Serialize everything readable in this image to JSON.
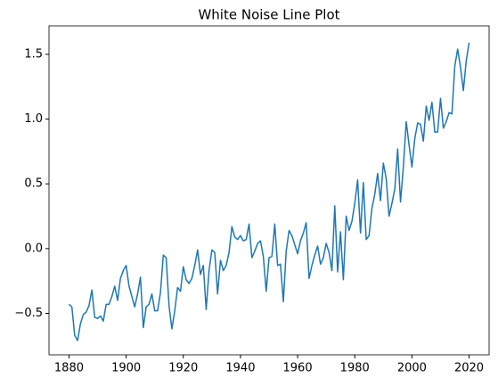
{
  "chart_data": {
    "type": "line",
    "title": "White Noise Line Plot",
    "color": "#1f77b4",
    "x": [
      1880,
      1881,
      1882,
      1883,
      1884,
      1885,
      1886,
      1887,
      1888,
      1889,
      1890,
      1891,
      1892,
      1893,
      1894,
      1895,
      1896,
      1897,
      1898,
      1899,
      1900,
      1901,
      1902,
      1903,
      1904,
      1905,
      1906,
      1907,
      1908,
      1909,
      1910,
      1911,
      1912,
      1913,
      1914,
      1915,
      1916,
      1917,
      1918,
      1919,
      1920,
      1921,
      1922,
      1923,
      1924,
      1925,
      1926,
      1927,
      1928,
      1929,
      1930,
      1931,
      1932,
      1933,
      1934,
      1935,
      1936,
      1937,
      1938,
      1939,
      1940,
      1941,
      1942,
      1943,
      1944,
      1945,
      1946,
      1947,
      1948,
      1949,
      1950,
      1951,
      1952,
      1953,
      1954,
      1955,
      1956,
      1957,
      1958,
      1959,
      1960,
      1961,
      1962,
      1963,
      1964,
      1965,
      1966,
      1967,
      1968,
      1969,
      1970,
      1971,
      1972,
      1973,
      1974,
      1975,
      1976,
      1977,
      1978,
      1979,
      1980,
      1981,
      1982,
      1983,
      1984,
      1985,
      1986,
      1987,
      1988,
      1989,
      1990,
      1991,
      1992,
      1993,
      1994,
      1995,
      1996,
      1997,
      1998,
      1999,
      2000,
      2001,
      2002,
      2003,
      2004,
      2005,
      2006,
      2007,
      2008,
      2009,
      2010,
      2011,
      2012,
      2013,
      2014,
      2015,
      2016,
      2017,
      2018,
      2019,
      2020
    ],
    "values": [
      -0.43,
      -0.45,
      -0.67,
      -0.71,
      -0.58,
      -0.51,
      -0.49,
      -0.44,
      -0.32,
      -0.53,
      -0.54,
      -0.52,
      -0.56,
      -0.43,
      -0.43,
      -0.37,
      -0.29,
      -0.4,
      -0.23,
      -0.17,
      -0.13,
      -0.29,
      -0.37,
      -0.45,
      -0.35,
      -0.22,
      -0.61,
      -0.45,
      -0.43,
      -0.35,
      -0.48,
      -0.48,
      -0.34,
      -0.05,
      -0.07,
      -0.44,
      -0.62,
      -0.48,
      -0.3,
      -0.33,
      -0.14,
      -0.24,
      -0.27,
      -0.23,
      -0.13,
      -0.01,
      -0.2,
      -0.13,
      -0.47,
      -0.17,
      -0.01,
      -0.03,
      -0.35,
      -0.09,
      -0.17,
      -0.13,
      -0.03,
      0.17,
      0.09,
      0.07,
      0.1,
      0.06,
      0.07,
      0.19,
      -0.07,
      -0.02,
      0.04,
      0.06,
      -0.06,
      -0.33,
      -0.07,
      -0.06,
      0.19,
      -0.13,
      -0.12,
      -0.41,
      -0.02,
      0.14,
      0.1,
      0.03,
      -0.04,
      0.06,
      0.12,
      0.2,
      -0.23,
      -0.13,
      -0.05,
      0.02,
      -0.12,
      -0.07,
      0.04,
      -0.03,
      -0.17,
      0.33,
      -0.18,
      0.13,
      -0.24,
      0.25,
      0.14,
      0.21,
      0.35,
      0.53,
      0.12,
      0.51,
      0.07,
      0.1,
      0.31,
      0.42,
      0.58,
      0.37,
      0.66,
      0.54,
      0.25,
      0.35,
      0.46,
      0.77,
      0.36,
      0.63,
      0.98,
      0.8,
      0.63,
      0.85,
      0.97,
      0.96,
      0.83,
      1.1,
      0.99,
      1.13,
      0.9,
      0.9,
      1.16,
      0.93,
      0.98,
      1.05,
      1.04,
      1.41,
      1.54,
      1.4,
      1.22,
      1.45,
      1.59
    ],
    "xlim": [
      1873,
      2027
    ],
    "xticks": [
      1880,
      1900,
      1920,
      1940,
      1960,
      1980,
      2000,
      2020
    ],
    "ylim": [
      -0.82,
      1.72
    ],
    "yticks": [
      {
        "value": -0.5,
        "label": "−0.5"
      },
      {
        "value": 0,
        "label": "0.0"
      },
      0.5,
      {
        "value": 1,
        "label": "1.0"
      },
      1.5
    ]
  }
}
